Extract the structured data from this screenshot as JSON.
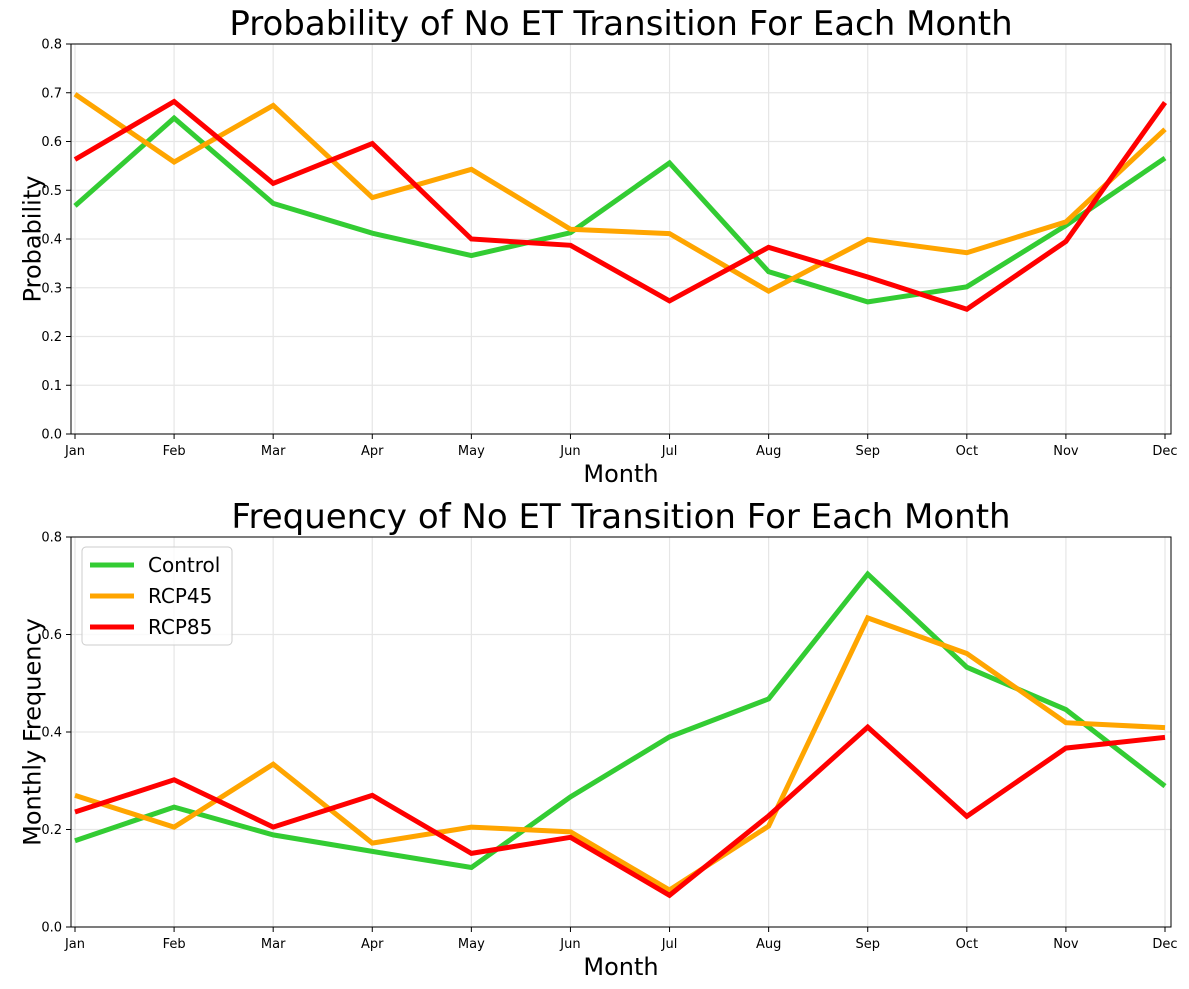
{
  "chart_data": [
    {
      "type": "line",
      "title": "Probability of No ET Transition For Each Month",
      "xlabel": "Month",
      "ylabel": "Probability",
      "categories": [
        "Jan",
        "Feb",
        "Mar",
        "Apr",
        "May",
        "Jun",
        "Jul",
        "Aug",
        "Sep",
        "Oct",
        "Nov",
        "Dec"
      ],
      "ylim": [
        0,
        0.8
      ],
      "yticks": [
        "0.0",
        "0.1",
        "0.2",
        "0.3",
        "0.4",
        "0.5",
        "0.6",
        "0.7",
        "0.8"
      ],
      "grid": true,
      "series": [
        {
          "name": "Control",
          "color": "#33cc33",
          "values": [
            0.468,
            0.648,
            0.473,
            0.412,
            0.366,
            0.413,
            0.556,
            0.333,
            0.271,
            0.302,
            0.428,
            0.566
          ]
        },
        {
          "name": "RCP45",
          "color": "#ffa500",
          "values": [
            0.697,
            0.558,
            0.674,
            0.485,
            0.543,
            0.42,
            0.411,
            0.293,
            0.399,
            0.372,
            0.435,
            0.625
          ]
        },
        {
          "name": "RCP85",
          "color": "#ff0000",
          "values": [
            0.563,
            0.682,
            0.514,
            0.596,
            0.4,
            0.387,
            0.273,
            0.383,
            0.322,
            0.256,
            0.395,
            0.68
          ]
        }
      ]
    },
    {
      "type": "line",
      "title": "Frequency of No ET Transition For Each Month",
      "xlabel": "Month",
      "ylabel": "Monthly Frequency",
      "categories": [
        "Jan",
        "Feb",
        "Mar",
        "Apr",
        "May",
        "Jun",
        "Jul",
        "Aug",
        "Sep",
        "Oct",
        "Nov",
        "Dec"
      ],
      "ylim": [
        0,
        0.8
      ],
      "yticks": [
        "0.0",
        "0.2",
        "0.4",
        "0.6",
        "0.8"
      ],
      "grid": true,
      "legend": "upper-left",
      "series": [
        {
          "name": "Control",
          "color": "#33cc33",
          "values": [
            0.177,
            0.246,
            0.189,
            0.155,
            0.122,
            0.267,
            0.39,
            0.468,
            0.724,
            0.533,
            0.446,
            0.289
          ]
        },
        {
          "name": "RCP45",
          "color": "#ffa500",
          "values": [
            0.27,
            0.205,
            0.334,
            0.172,
            0.205,
            0.195,
            0.076,
            0.207,
            0.634,
            0.561,
            0.419,
            0.409
          ]
        },
        {
          "name": "RCP85",
          "color": "#ff0000",
          "values": [
            0.236,
            0.302,
            0.205,
            0.27,
            0.151,
            0.184,
            0.065,
            0.228,
            0.41,
            0.227,
            0.367,
            0.389
          ]
        }
      ]
    }
  ]
}
